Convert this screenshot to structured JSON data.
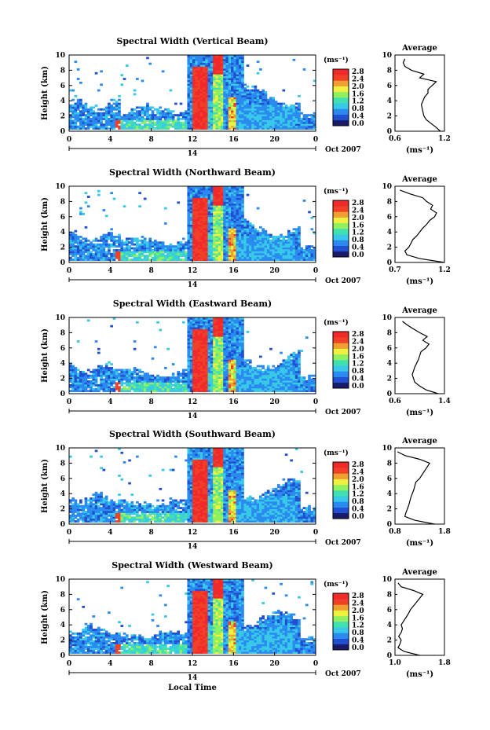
{
  "figure": {
    "xlabel": "Local Time",
    "date_label": "Oct 2007",
    "day_label": "14",
    "ylabel": "Height (km)",
    "unit_label": "(ms⁻¹)",
    "avg_title": "Average",
    "avg_xlabel": "(ms⁻¹)"
  },
  "chart_data": [
    {
      "type": "heatmap",
      "title": "Spectral Width (Vertical Beam)",
      "xlabel": "Local Time",
      "ylabel": "Height (km)",
      "xticks": [
        "0",
        "4",
        "8",
        "12",
        "16",
        "20",
        "0"
      ],
      "yticks": [
        "0",
        "2",
        "4",
        "6",
        "8",
        "10"
      ],
      "xlim": [
        0,
        24
      ],
      "ylim": [
        0,
        10
      ],
      "colorbar": {
        "label": "(ms⁻¹)",
        "ticks": [
          "0.0",
          "0.4",
          "0.8",
          "1.2",
          "1.6",
          "2.0",
          "2.4",
          "2.8"
        ],
        "range": [
          0,
          2.8
        ]
      },
      "average": {
        "title": "Average",
        "xlabel": "(ms⁻¹)",
        "xticks": [
          "0.6",
          "1.2"
        ],
        "xlim": [
          0.6,
          1.2
        ],
        "height": [
          0,
          0.5,
          1,
          1.5,
          2,
          2.5,
          3,
          3.5,
          4,
          4.5,
          5,
          5.5,
          6,
          6.5,
          7,
          7.5,
          8,
          8.5,
          9,
          9.5
        ],
        "value": [
          1.15,
          1.1,
          1.04,
          0.98,
          0.95,
          0.94,
          0.93,
          0.92,
          0.94,
          0.96,
          1.0,
          1.0,
          1.05,
          1.1,
          0.9,
          0.95,
          0.8,
          0.72,
          0.7,
          0.72
        ]
      }
    },
    {
      "type": "heatmap",
      "title": "Spectral Width (Northward Beam)",
      "xlabel": "Local Time",
      "ylabel": "Height (km)",
      "xticks": [
        "0",
        "4",
        "8",
        "12",
        "16",
        "20",
        "0"
      ],
      "yticks": [
        "0",
        "2",
        "4",
        "6",
        "8",
        "10"
      ],
      "xlim": [
        0,
        24
      ],
      "ylim": [
        0,
        10
      ],
      "colorbar": {
        "label": "(ms⁻¹)",
        "ticks": [
          "0.0",
          "0.4",
          "0.8",
          "1.2",
          "1.6",
          "2.0",
          "2.4",
          "2.8"
        ],
        "range": [
          0,
          2.8
        ]
      },
      "average": {
        "title": "Average",
        "xlabel": "(ms⁻¹)",
        "xticks": [
          "0.7",
          "1.2"
        ],
        "xlim": [
          0.7,
          1.2
        ],
        "height": [
          0,
          0.5,
          1,
          1.5,
          2,
          2.5,
          3,
          3.5,
          4,
          4.5,
          5,
          5.5,
          6,
          6.5,
          7,
          7.5,
          8,
          8.5,
          9,
          9.5
        ],
        "value": [
          1.2,
          0.95,
          0.82,
          0.8,
          0.84,
          0.86,
          0.88,
          0.92,
          0.95,
          0.98,
          1.02,
          1.05,
          1.1,
          1.12,
          1.06,
          1.08,
          1.02,
          0.98,
          0.85,
          0.75
        ]
      }
    },
    {
      "type": "heatmap",
      "title": "Spectral Width (Eastward Beam)",
      "xlabel": "Local Time",
      "ylabel": "Height (km)",
      "xticks": [
        "0",
        "4",
        "8",
        "12",
        "16",
        "20",
        "0"
      ],
      "yticks": [
        "0",
        "2",
        "4",
        "6",
        "8",
        "10"
      ],
      "xlim": [
        0,
        24
      ],
      "ylim": [
        0,
        10
      ],
      "colorbar": {
        "label": "(ms⁻¹)",
        "ticks": [
          "0.0",
          "0.4",
          "0.8",
          "1.2",
          "1.6",
          "2.0",
          "2.4",
          "2.8"
        ],
        "range": [
          0,
          2.8
        ]
      },
      "average": {
        "title": "Average",
        "xlabel": "(ms⁻¹)",
        "xticks": [
          "0.6",
          "1.4"
        ],
        "xlim": [
          0.6,
          1.4
        ],
        "height": [
          0,
          0.5,
          1,
          1.5,
          2,
          2.5,
          3,
          3.5,
          4,
          4.5,
          5,
          5.5,
          6,
          6.5,
          7,
          7.5,
          8,
          8.5,
          9,
          9.5
        ],
        "value": [
          1.3,
          1.1,
          1.0,
          0.92,
          0.9,
          0.88,
          0.9,
          0.92,
          0.95,
          0.98,
          1.0,
          1.02,
          1.1,
          1.15,
          1.05,
          1.12,
          1.0,
          0.9,
          0.8,
          0.72
        ]
      }
    },
    {
      "type": "heatmap",
      "title": "Spectral Width (Southward Beam)",
      "xlabel": "Local Time",
      "ylabel": "Height (km)",
      "xticks": [
        "0",
        "4",
        "8",
        "12",
        "16",
        "20",
        "0"
      ],
      "yticks": [
        "0",
        "2",
        "4",
        "6",
        "8",
        "10"
      ],
      "xlim": [
        0,
        24
      ],
      "ylim": [
        0,
        10
      ],
      "colorbar": {
        "label": "(ms⁻¹)",
        "ticks": [
          "0.0",
          "0.4",
          "0.8",
          "1.2",
          "1.6",
          "2.0",
          "2.4",
          "2.8"
        ],
        "range": [
          0,
          2.8
        ]
      },
      "average": {
        "title": "Average",
        "xlabel": "(ms⁻¹)",
        "xticks": [
          "0.8",
          "1.8"
        ],
        "xlim": [
          0.8,
          1.8
        ],
        "height": [
          0,
          0.5,
          1,
          1.5,
          2,
          2.5,
          3,
          3.5,
          4,
          4.5,
          5,
          5.5,
          6,
          6.5,
          7,
          7.5,
          8,
          8.5,
          9,
          9.5
        ],
        "value": [
          1.6,
          1.2,
          1.0,
          1.02,
          1.05,
          1.08,
          1.1,
          1.12,
          1.15,
          1.18,
          1.2,
          1.22,
          1.3,
          1.35,
          1.4,
          1.45,
          1.5,
          1.3,
          1.0,
          0.85
        ]
      }
    },
    {
      "type": "heatmap",
      "title": "Spectral Width (Westward Beam)",
      "xlabel": "Local Time",
      "ylabel": "Height (km)",
      "xticks": [
        "0",
        "4",
        "8",
        "12",
        "16",
        "20",
        "0"
      ],
      "yticks": [
        "0",
        "2",
        "4",
        "6",
        "8",
        "10"
      ],
      "xlim": [
        0,
        24
      ],
      "ylim": [
        0,
        10
      ],
      "colorbar": {
        "label": "(ms⁻¹)",
        "ticks": [
          "0.0",
          "0.4",
          "0.8",
          "1.2",
          "1.6",
          "2.0",
          "2.4",
          "2.8"
        ],
        "range": [
          0,
          2.8
        ]
      },
      "average": {
        "title": "Average",
        "xlabel": "(ms⁻¹)",
        "xticks": [
          "1.0",
          "1.8"
        ],
        "xlim": [
          1.0,
          1.8
        ],
        "height": [
          0,
          0.5,
          1,
          1.5,
          2,
          2.5,
          3,
          3.5,
          4,
          4.5,
          5,
          5.5,
          6,
          6.5,
          7,
          7.5,
          8,
          8.5,
          9,
          9.5
        ],
        "value": [
          1.4,
          1.15,
          1.05,
          1.08,
          1.1,
          1.06,
          1.1,
          1.12,
          1.1,
          1.14,
          1.18,
          1.22,
          1.25,
          1.3,
          1.35,
          1.4,
          1.45,
          1.3,
          1.1,
          1.05
        ]
      }
    }
  ],
  "colors": {
    "scale": [
      "#1a1a6a",
      "#2050d0",
      "#2a8af0",
      "#38c8e8",
      "#40e0b0",
      "#90f060",
      "#f0f040",
      "#f0a030",
      "#f04028",
      "#f02a2a"
    ]
  }
}
